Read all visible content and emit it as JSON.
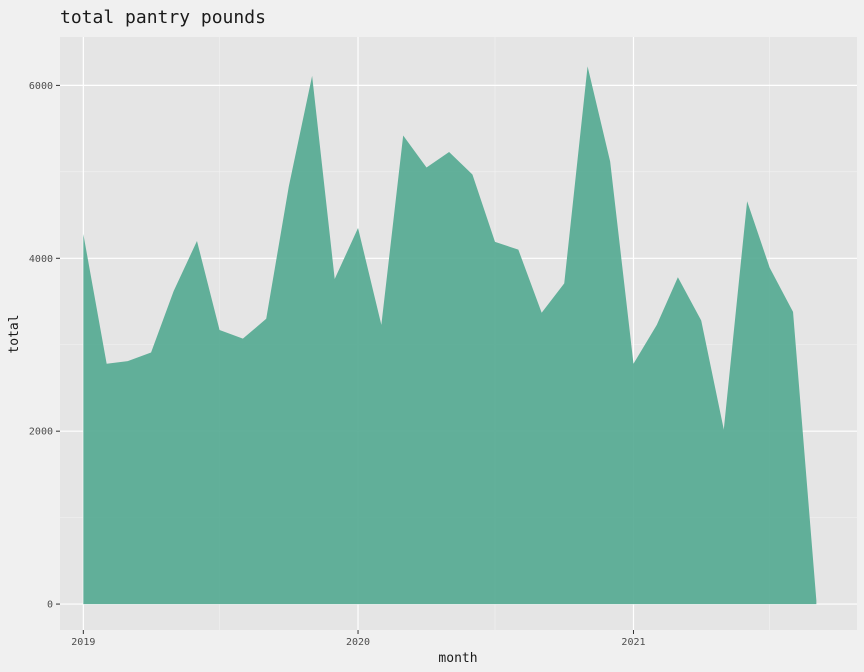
{
  "chart_data": {
    "type": "area",
    "title": "total pantry pounds",
    "xlabel": "month",
    "ylabel": "total",
    "x": [
      "2019-01",
      "2019-02",
      "2019-03",
      "2019-04",
      "2019-05",
      "2019-06",
      "2019-07",
      "2019-08",
      "2019-09",
      "2019-10",
      "2019-11",
      "2019-12",
      "2020-01",
      "2020-02",
      "2020-03",
      "2020-04",
      "2020-05",
      "2020-06",
      "2020-07",
      "2020-08",
      "2020-09",
      "2020-10",
      "2020-11",
      "2020-12",
      "2021-01",
      "2021-02",
      "2021-03",
      "2021-04",
      "2021-05",
      "2021-06",
      "2021-07",
      "2021-08",
      "2021-09"
    ],
    "values": [
      4280,
      2780,
      2810,
      2910,
      3620,
      4200,
      3170,
      3070,
      3300,
      4830,
      6110,
      3760,
      4350,
      3230,
      5420,
      5050,
      5230,
      4970,
      4190,
      4100,
      3370,
      3710,
      6220,
      5120,
      2780,
      3230,
      3780,
      3280,
      2020,
      4660,
      3890,
      3380,
      40
    ],
    "ylim": [
      -300,
      6560
    ],
    "xlim": [
      "2018-12-01",
      "2021-10-25"
    ],
    "y_ticks": [
      0,
      2000,
      4000,
      6000
    ],
    "y_tick_labels": [
      "0",
      "2000",
      "4000",
      "6000"
    ],
    "x_ticks": [
      "2019-01-01",
      "2020-01-01",
      "2021-01-01"
    ],
    "x_tick_labels": [
      "2019",
      "2020",
      "2021"
    ],
    "fill_color": "#52a890",
    "panel_color": "#e5e5e5",
    "grid": true
  }
}
